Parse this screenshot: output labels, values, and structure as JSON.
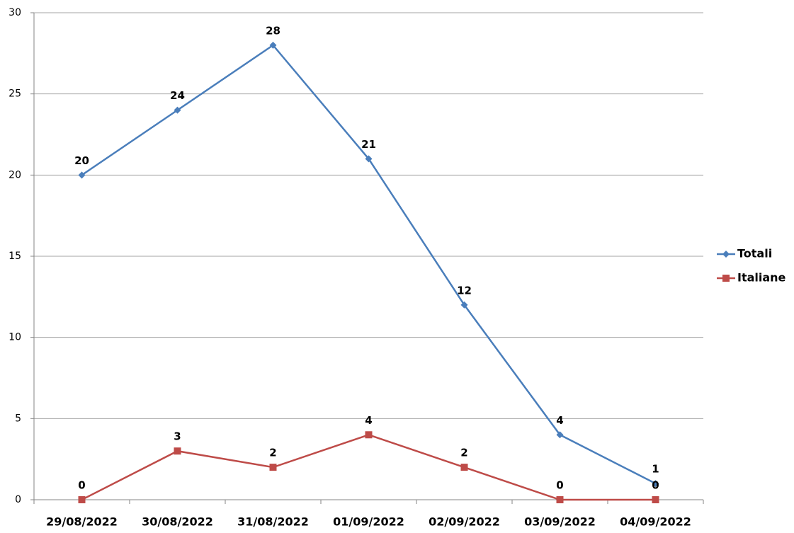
{
  "chart_data": {
    "type": "line",
    "categories": [
      "29/08/2022",
      "30/08/2022",
      "31/08/2022",
      "01/09/2022",
      "02/09/2022",
      "03/09/2022",
      "04/09/2022"
    ],
    "series": [
      {
        "name": "Totali",
        "color": "#4a7ebb",
        "marker": "diamond",
        "values": [
          20,
          24,
          28,
          21,
          12,
          4,
          1
        ]
      },
      {
        "name": "Italiane",
        "color": "#be4b48",
        "marker": "square",
        "values": [
          0,
          3,
          2,
          4,
          2,
          0,
          0
        ]
      }
    ],
    "ylim": [
      0,
      30
    ],
    "yticks": [
      0,
      5,
      10,
      15,
      20,
      25,
      30
    ],
    "grid": true,
    "legend": "right"
  }
}
